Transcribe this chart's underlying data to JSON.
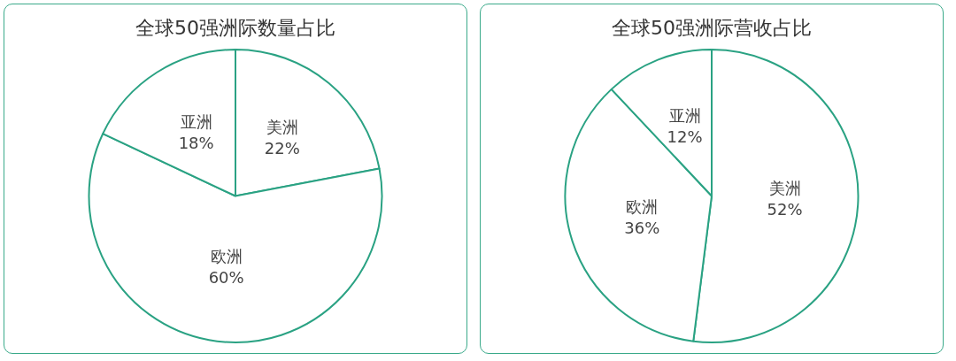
{
  "chart_data": [
    {
      "type": "pie",
      "title": "全球50强洲际数量占比",
      "categories": [
        "美洲",
        "欧洲",
        "亚洲"
      ],
      "values": [
        22,
        60,
        18
      ],
      "colors": [
        "#ffffff",
        "#ffffff",
        "#ffffff"
      ],
      "value_labels": [
        "22%",
        "60%",
        "18%"
      ]
    },
    {
      "type": "pie",
      "title": "全球50强洲际营收占比",
      "categories": [
        "美洲",
        "欧洲",
        "亚洲"
      ],
      "values": [
        52,
        36,
        12
      ],
      "colors": [
        "#ffffff",
        "#ffffff",
        "#ffffff"
      ],
      "value_labels": [
        "52%",
        "36%",
        "12%"
      ]
    }
  ]
}
